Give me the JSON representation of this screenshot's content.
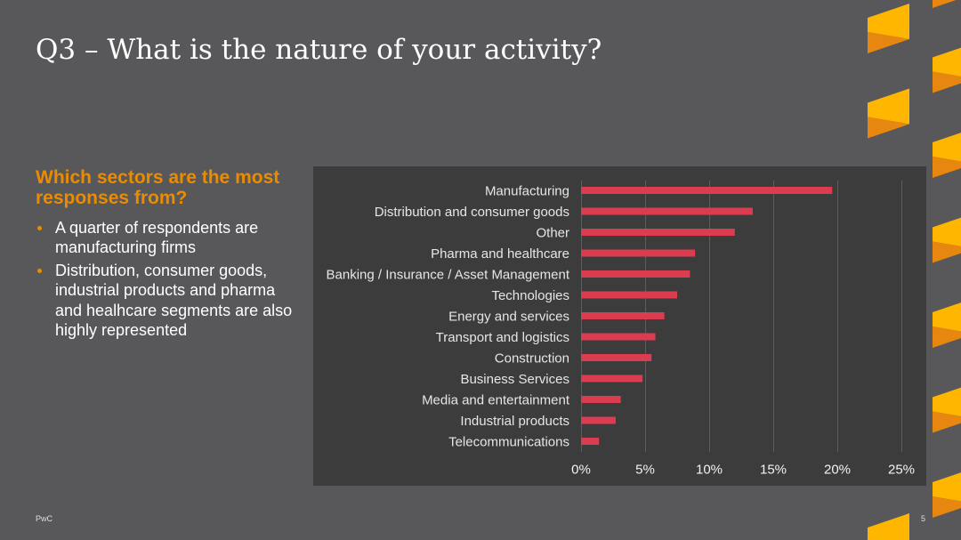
{
  "slide": {
    "title": "Q3 – What is the nature of your activity?",
    "footer_brand": "PwC",
    "page_number": "5"
  },
  "left_panel": {
    "heading": "Which sectors are the most responses from?",
    "bullets": [
      "A quarter of respondents are manufacturing firms",
      "Distribution, consumer goods, industrial products and pharma and healhcare segments are also highly represented"
    ]
  },
  "colors": {
    "background": "#58585a",
    "chart_panel": "#3c3c3c",
    "accent_orange": "#eb8c00",
    "decor_yellow": "#ffb600",
    "decor_orange": "#e8870f",
    "bar": "#dc3c50",
    "gridline": "#5e5e5e",
    "text": "#ffffff",
    "label_text": "#e6e6e6"
  },
  "chart_data": {
    "type": "bar",
    "orientation": "horizontal",
    "categories": [
      "Manufacturing",
      "Distribution and consumer goods",
      "Other",
      "Pharma and healthcare",
      "Banking / Insurance / Asset Management",
      "Technologies",
      "Energy and services",
      "Transport and logistics",
      "Construction",
      "Business Services",
      "Media and entertainment",
      "Industrial products",
      "Telecommunications"
    ],
    "values": [
      19.6,
      13.4,
      12.0,
      8.9,
      8.5,
      7.5,
      6.5,
      5.8,
      5.5,
      4.8,
      3.1,
      2.7,
      1.4
    ],
    "xticks": [
      "0%",
      "5%",
      "10%",
      "15%",
      "20%",
      "25%"
    ],
    "xlim": [
      0,
      25
    ],
    "grid": true,
    "legend": "none"
  }
}
